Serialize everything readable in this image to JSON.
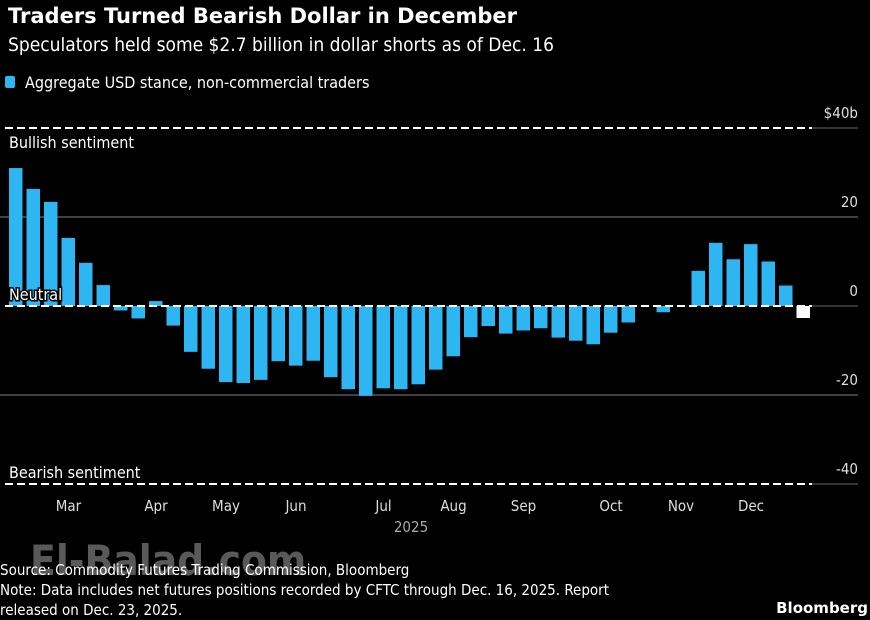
{
  "chart_data": {
    "type": "bar",
    "title": "Traders Turned Bearish Dollar in December",
    "subtitle": "Speculators held some $2.7 billion in dollar shorts as of Dec. 16",
    "legend": [
      {
        "name": "Aggregate USD stance, non-commercial traders",
        "color": "#2eb6f2"
      }
    ],
    "legend_placement": "top-left",
    "xlabel": "2025",
    "ylabel": "",
    "unit": "$ billions",
    "ylim": [
      -40,
      40
    ],
    "yticks": [
      {
        "value": 40,
        "label": "$40b",
        "style": "dashed"
      },
      {
        "value": 20,
        "label": "20",
        "style": "solid"
      },
      {
        "value": 0,
        "label": "0",
        "style": "dashed"
      },
      {
        "value": -20,
        "label": "-20",
        "style": "solid"
      },
      {
        "value": -40,
        "label": "-40",
        "style": "dashed"
      }
    ],
    "xticks": [
      {
        "label": "Mar",
        "bar_index": 3
      },
      {
        "label": "Apr",
        "bar_index": 8
      },
      {
        "label": "May",
        "bar_index": 12
      },
      {
        "label": "Jun",
        "bar_index": 16
      },
      {
        "label": "Jul",
        "bar_index": 21
      },
      {
        "label": "Aug",
        "bar_index": 25
      },
      {
        "label": "Sep",
        "bar_index": 29
      },
      {
        "label": "Oct",
        "bar_index": 34
      },
      {
        "label": "Nov",
        "bar_index": 38
      },
      {
        "label": "Dec",
        "bar_index": 42
      }
    ],
    "annotations": [
      {
        "text": "Bullish sentiment",
        "value": 40
      },
      {
        "text": "Neutral",
        "value": 0
      },
      {
        "text": "Bearish sentiment",
        "value": -40
      }
    ],
    "values": [
      31,
      26.3,
      23.4,
      15.3,
      9.7,
      4.7,
      -1,
      -2.8,
      1.1,
      -4.4,
      -10.3,
      -14.1,
      -17.1,
      -17.3,
      -16.6,
      -12.4,
      -13.4,
      -12.3,
      -16,
      -18.7,
      -20.2,
      -18.5,
      -18.7,
      -17.6,
      -14.3,
      -11.3,
      -7,
      -4.5,
      -6.2,
      -5.5,
      -5,
      -7.1,
      -7.8,
      -8.6,
      -6,
      -3.7,
      0,
      -1.4,
      0,
      7.9,
      14.2,
      10.5,
      13.9,
      10,
      4.6,
      -2.7
    ],
    "highlight_last_color": "#ffffff",
    "bar_color": "#2eb6f2",
    "grid": true
  },
  "footer": {
    "source": "Source: Commodity Futures Trading Commission, Bloomberg",
    "note_line1": "Note: Data includes net futures positions recorded by CFTC through Dec. 16, 2025. Report",
    "note_line2": "released on Dec. 23, 2025.",
    "brand": "Bloomberg",
    "watermark": "El-Balad.com"
  }
}
